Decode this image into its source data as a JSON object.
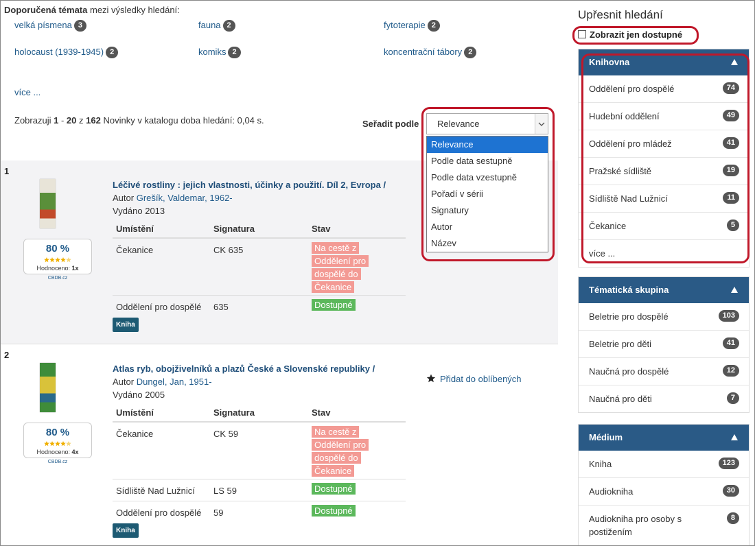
{
  "suggested": {
    "label": "Doporučená témata",
    "rest": "mezi výsledky hledání:",
    "topics": [
      {
        "name": "velká písmena",
        "count": 3
      },
      {
        "name": "fauna",
        "count": 2
      },
      {
        "name": "fytoterapie",
        "count": 2
      },
      {
        "name": "holocaust (1939-1945)",
        "count": 2
      },
      {
        "name": "komiks",
        "count": 2
      },
      {
        "name": "koncentrační tábory",
        "count": 2
      }
    ],
    "more": "více ..."
  },
  "summary": {
    "prefix": "Zobrazuji",
    "from": 1,
    "dash": "-",
    "to": 20,
    "of": "z",
    "total": 162,
    "rest": "Novinky v katalogu doba hledání: 0,04 s."
  },
  "sort": {
    "label": "Seřadit podle",
    "selected": "Relevance",
    "options": [
      "Relevance",
      "Podle data sestupně",
      "Podle data vzestupně",
      "Pořadí v sérii",
      "Signatury",
      "Autor",
      "Název"
    ]
  },
  "results": [
    {
      "number": 1,
      "title": "Léčivé rostliny : jejich vlastnosti, účinky a použití. Díl 2, Evropa /",
      "author_label": "Autor",
      "author": "Grešík, Valdemar, 1962-",
      "published": "Vydáno 2013",
      "rating": "80 %",
      "rated_label": "Hodnoceno:",
      "rated_count": "1x",
      "rating_source": "CBDB.cz",
      "columns": [
        "Umístění",
        "Signatura",
        "Stav"
      ],
      "holdings": [
        {
          "location": "Čekanice",
          "signature": "CK 635",
          "status": "Na cestě z Oddělení pro dospělé do Čekanice",
          "available": false
        },
        {
          "location": "Oddělení pro dospělé",
          "signature": "635",
          "status": "Dostupné",
          "available": true
        }
      ],
      "format": "Kniha"
    },
    {
      "number": 2,
      "title": "Atlas ryb, obojživelníků a plazů České a Slovenské republiky /",
      "author_label": "Autor",
      "author": "Dungel, Jan, 1951-",
      "published": "Vydáno 2005",
      "rating": "80 %",
      "rated_label": "Hodnoceno:",
      "rated_count": "4x",
      "rating_source": "CBDB.cz",
      "favorite": "Přidat do oblíbených",
      "columns": [
        "Umístění",
        "Signatura",
        "Stav"
      ],
      "holdings": [
        {
          "location": "Čekanice",
          "signature": "CK 59",
          "status": "Na cestě z Oddělení pro dospělé do Čekanice",
          "available": false
        },
        {
          "location": "Sídliště Nad Lužnicí",
          "signature": "LS 59",
          "status": "Dostupné",
          "available": true
        },
        {
          "location": "Oddělení pro dospělé",
          "signature": "59",
          "status": "Dostupné",
          "available": true
        }
      ],
      "format": "Kniha"
    }
  ],
  "sidebar": {
    "title": "Upřesnit hledání",
    "available_only": "Zobrazit jen dostupné",
    "facets": [
      {
        "title": "Knihovna",
        "items": [
          {
            "name": "Oddělení pro dospělé",
            "count": 74
          },
          {
            "name": "Hudební oddělení",
            "count": 49
          },
          {
            "name": "Oddělení pro mládež",
            "count": 41
          },
          {
            "name": "Pražské sídliště",
            "count": 19
          },
          {
            "name": "Sídliště Nad Lužnicí",
            "count": 11
          },
          {
            "name": "Čekanice",
            "count": 5
          }
        ],
        "more": "více ..."
      },
      {
        "title": "Tématická skupina",
        "items": [
          {
            "name": "Beletrie pro dospělé",
            "count": 103
          },
          {
            "name": "Beletrie pro děti",
            "count": 41
          },
          {
            "name": "Naučná pro dospělé",
            "count": 12
          },
          {
            "name": "Naučná pro děti",
            "count": 7
          }
        ]
      },
      {
        "title": "Médium",
        "items": [
          {
            "name": "Kniha",
            "count": 123
          },
          {
            "name": "Audiokniha",
            "count": 30
          },
          {
            "name": "Audiokniha pro osoby s postižením",
            "count": 8
          }
        ]
      }
    ]
  }
}
